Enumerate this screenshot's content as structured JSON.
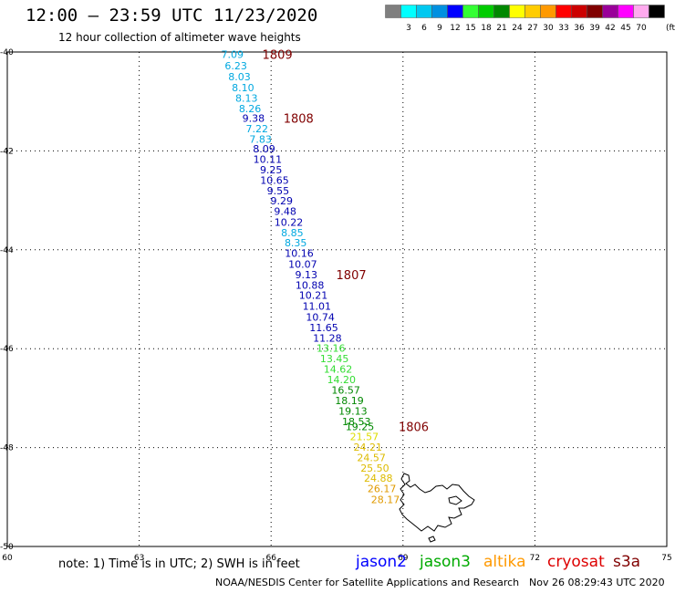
{
  "header": {
    "title": "12:00 — 23:59 UTC 11/23/2020",
    "subtitle": "12 hour collection of altimeter wave heights"
  },
  "color_scale": {
    "unit": "(ft)",
    "swatches": [
      {
        "color": "#7f7f7f",
        "label": ""
      },
      {
        "color": "#00ffff",
        "label": "3"
      },
      {
        "color": "#00c8f0",
        "label": "6"
      },
      {
        "color": "#0090e0",
        "label": "9"
      },
      {
        "color": "#0000ff",
        "label": "12"
      },
      {
        "color": "#33ff33",
        "label": "15"
      },
      {
        "color": "#00cc00",
        "label": "18"
      },
      {
        "color": "#008800",
        "label": "21"
      },
      {
        "color": "#ffff00",
        "label": "24"
      },
      {
        "color": "#ffcc00",
        "label": "27"
      },
      {
        "color": "#ff9900",
        "label": "30"
      },
      {
        "color": "#ff0000",
        "label": "33"
      },
      {
        "color": "#cc0000",
        "label": "36"
      },
      {
        "color": "#800000",
        "label": "39"
      },
      {
        "color": "#990099",
        "label": "42"
      },
      {
        "color": "#ff00ff",
        "label": "45"
      },
      {
        "color": "#ffaaee",
        "label": "70"
      },
      {
        "color": "#000000",
        "label": ""
      }
    ]
  },
  "axes": {
    "lon_ticks": [
      "60",
      "63",
      "66",
      "69",
      "72",
      "75"
    ],
    "lat_ticks": [
      "-40",
      "-42",
      "-44",
      "-46",
      "-48",
      "-50"
    ]
  },
  "track_points": [
    {
      "label": "7.09",
      "color": "#00a8e0",
      "lon": 65.12,
      "lat": -40.05
    },
    {
      "label": "6.23",
      "color": "#00a8e0",
      "lon": 65.2,
      "lat": -40.28
    },
    {
      "label": "8.03",
      "color": "#00a8e0",
      "lon": 65.28,
      "lat": -40.5
    },
    {
      "label": "8.10",
      "color": "#00a8e0",
      "lon": 65.36,
      "lat": -40.72
    },
    {
      "label": "8.13",
      "color": "#00a8e0",
      "lon": 65.44,
      "lat": -40.93
    },
    {
      "label": "8.26",
      "color": "#00a8e0",
      "lon": 65.52,
      "lat": -41.14
    },
    {
      "label": "9.38",
      "color": "#0000b0",
      "lon": 65.6,
      "lat": -41.34
    },
    {
      "label": "7.22",
      "color": "#00a8e0",
      "lon": 65.68,
      "lat": -41.55
    },
    {
      "label": "7.83",
      "color": "#00a8e0",
      "lon": 65.76,
      "lat": -41.76
    },
    {
      "label": "8.09",
      "color": "#0000b0",
      "lon": 65.84,
      "lat": -41.96
    },
    {
      "label": "10.11",
      "color": "#0000b0",
      "lon": 65.92,
      "lat": -42.17
    },
    {
      "label": "9.25",
      "color": "#0000b0",
      "lon": 66.0,
      "lat": -42.38
    },
    {
      "label": "10.65",
      "color": "#0000b0",
      "lon": 66.08,
      "lat": -42.59
    },
    {
      "label": "9.55",
      "color": "#0000b0",
      "lon": 66.16,
      "lat": -42.8
    },
    {
      "label": "9.29",
      "color": "#0000b0",
      "lon": 66.24,
      "lat": -43.01
    },
    {
      "label": "9.48",
      "color": "#0000b0",
      "lon": 66.32,
      "lat": -43.22
    },
    {
      "label": "10.22",
      "color": "#0000b0",
      "lon": 66.4,
      "lat": -43.44
    },
    {
      "label": "8.85",
      "color": "#00a8e0",
      "lon": 66.48,
      "lat": -43.65
    },
    {
      "label": "8.35",
      "color": "#00a8e0",
      "lon": 66.56,
      "lat": -43.86
    },
    {
      "label": "10.16",
      "color": "#0000b0",
      "lon": 66.64,
      "lat": -44.07
    },
    {
      "label": "10.07",
      "color": "#0000b0",
      "lon": 66.72,
      "lat": -44.29
    },
    {
      "label": "9.13",
      "color": "#0000b0",
      "lon": 66.8,
      "lat": -44.5
    },
    {
      "label": "10.88",
      "color": "#0000b0",
      "lon": 66.88,
      "lat": -44.71
    },
    {
      "label": "10.21",
      "color": "#0000b0",
      "lon": 66.96,
      "lat": -44.92
    },
    {
      "label": "11.01",
      "color": "#0000b0",
      "lon": 67.04,
      "lat": -45.14
    },
    {
      "label": "10.74",
      "color": "#0000b0",
      "lon": 67.12,
      "lat": -45.36
    },
    {
      "label": "11.65",
      "color": "#0000b0",
      "lon": 67.2,
      "lat": -45.57
    },
    {
      "label": "11.28",
      "color": "#0000b0",
      "lon": 67.28,
      "lat": -45.78
    },
    {
      "label": "13.16",
      "color": "#33dd33",
      "lon": 67.36,
      "lat": -45.99
    },
    {
      "label": "13.45",
      "color": "#33dd33",
      "lon": 67.44,
      "lat": -46.2
    },
    {
      "label": "14.62",
      "color": "#33dd33",
      "lon": 67.52,
      "lat": -46.41
    },
    {
      "label": "14.20",
      "color": "#33dd33",
      "lon": 67.6,
      "lat": -46.62
    },
    {
      "label": "16.57",
      "color": "#008800",
      "lon": 67.7,
      "lat": -46.84
    },
    {
      "label": "18.19",
      "color": "#008800",
      "lon": 67.78,
      "lat": -47.05
    },
    {
      "label": "19.13",
      "color": "#008800",
      "lon": 67.86,
      "lat": -47.26
    },
    {
      "label": "18.53",
      "color": "#008800",
      "lon": 67.94,
      "lat": -47.47
    },
    {
      "label": "19.25",
      "color": "#008800",
      "lon": 68.02,
      "lat": -47.57
    },
    {
      "label": "21.57",
      "color": "#dddd00",
      "lon": 68.12,
      "lat": -47.78
    },
    {
      "label": "24.21",
      "color": "#ddbb00",
      "lon": 68.2,
      "lat": -47.99
    },
    {
      "label": "24.57",
      "color": "#ddbb00",
      "lon": 68.28,
      "lat": -48.2
    },
    {
      "label": "25.50",
      "color": "#ddbb00",
      "lon": 68.36,
      "lat": -48.41
    },
    {
      "label": "24.88",
      "color": "#ddbb00",
      "lon": 68.44,
      "lat": -48.62
    },
    {
      "label": "26.17",
      "color": "#e09a00",
      "lon": 68.52,
      "lat": -48.83
    },
    {
      "label": "28.17",
      "color": "#e09a00",
      "lon": 68.6,
      "lat": -49.05
    }
  ],
  "time_markers": [
    {
      "label": "1809",
      "color": "#800000",
      "lon": 65.8,
      "lat": -40.05
    },
    {
      "label": "1808",
      "color": "#800000",
      "lon": 66.28,
      "lat": -41.34
    },
    {
      "label": "1807",
      "color": "#800000",
      "lon": 67.48,
      "lat": -44.5
    },
    {
      "label": "1806",
      "color": "#800000",
      "lon": 68.9,
      "lat": -47.57
    }
  ],
  "footer": {
    "note": "note: 1) Time is in UTC; 2) SWH is in feet",
    "credit": "NOAA/NESDIS Center for Satellite Applications and Research",
    "timestamp": "Nov 26 08:29:43 UTC 2020"
  },
  "legend": [
    {
      "label": "jason2",
      "color": "#0000ff"
    },
    {
      "label": "jason3",
      "color": "#00aa00"
    },
    {
      "label": "altika",
      "color": "#ff9900"
    },
    {
      "label": "cryosat",
      "color": "#dd0000"
    },
    {
      "label": "s3a",
      "color": "#800000"
    }
  ]
}
